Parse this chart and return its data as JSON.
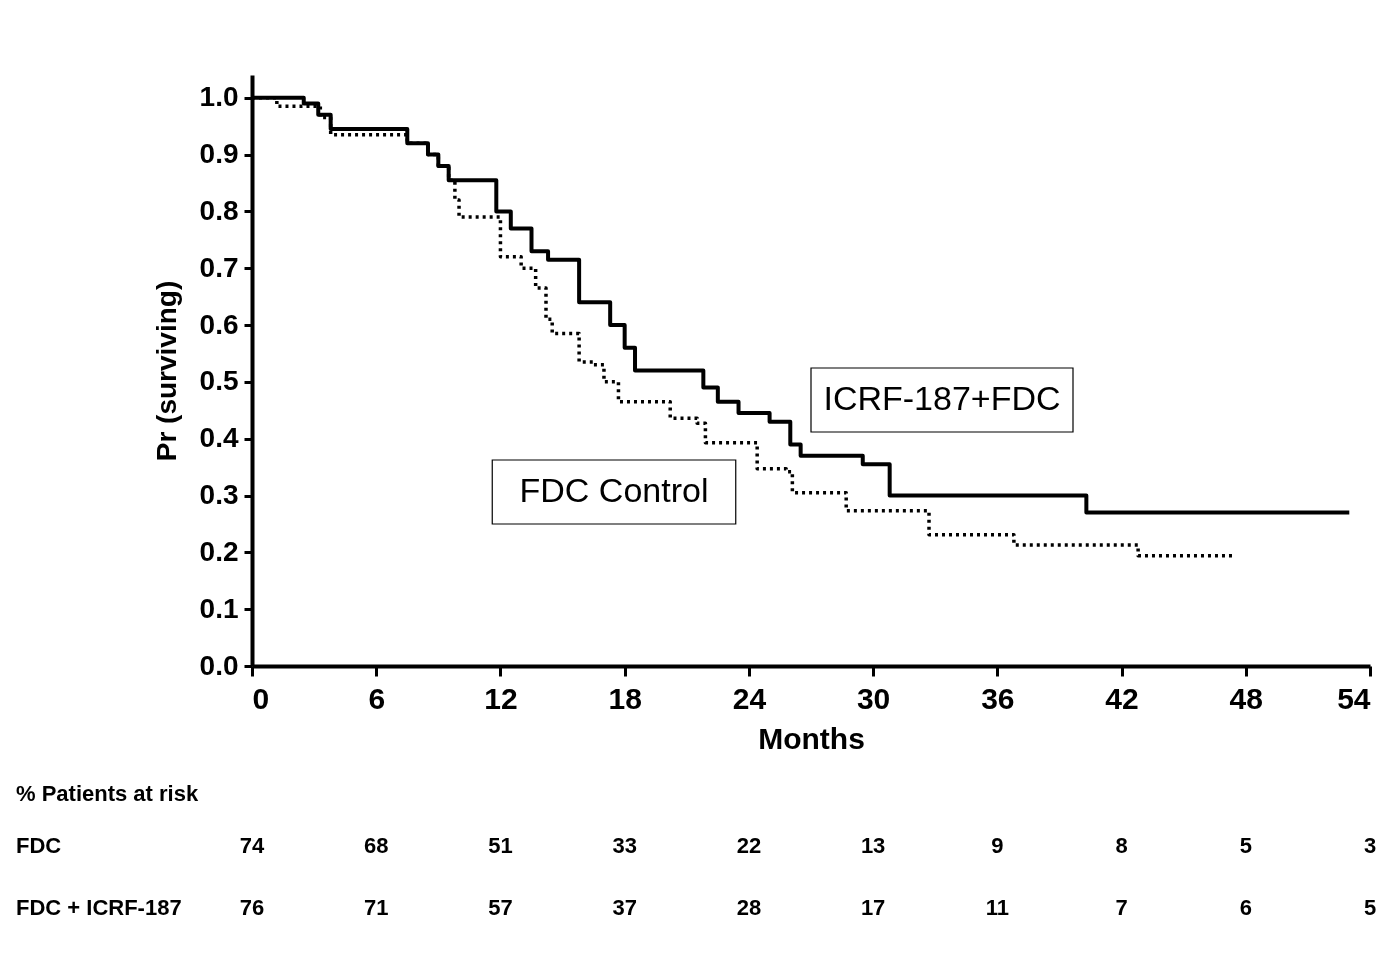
{
  "chart_data": {
    "type": "step",
    "xlabel": "Months",
    "ylabel": "Pr (surviving)",
    "xlim": [
      0,
      54
    ],
    "ylim": [
      0,
      1.04
    ],
    "xticks": [
      0,
      6,
      12,
      18,
      24,
      30,
      36,
      42,
      48,
      54
    ],
    "yticks": [
      {
        "value": 0,
        "label": "0.0"
      },
      {
        "value": 0.1,
        "label": "0.1"
      },
      {
        "value": 0.2,
        "label": "0.2"
      },
      {
        "value": 0.3,
        "label": "0.3"
      },
      {
        "value": 0.4,
        "label": "0.4"
      },
      {
        "value": 0.5,
        "label": "0.5"
      },
      {
        "value": 0.6,
        "label": "0.6"
      },
      {
        "value": 0.7,
        "label": "0.7"
      },
      {
        "value": 0.8,
        "label": "0.8"
      },
      {
        "value": 0.9,
        "label": "0.9"
      },
      {
        "value": 1,
        "label": "1.0"
      }
    ],
    "grid": false,
    "legend": false,
    "marker": "none",
    "series": [
      {
        "name": "ICRF-187+FDC",
        "color": "#000000",
        "line_style": "solid",
        "x": [
          0,
          2.5,
          3.2,
          3.8,
          6.8,
          7.5,
          8.5,
          9,
          9.5,
          11,
          11.8,
          12.5,
          13.5,
          14.3,
          15.8,
          17.3,
          18,
          18.5,
          21.2,
          21.8,
          22.5,
          23.5,
          25,
          26,
          26.5,
          29.5,
          30.8,
          40.3,
          53
        ],
        "values": [
          1,
          0.99,
          0.97,
          0.945,
          0.945,
          0.92,
          0.9,
          0.88,
          0.855,
          0.855,
          0.8,
          0.77,
          0.73,
          0.715,
          0.64,
          0.6,
          0.56,
          0.52,
          0.52,
          0.49,
          0.465,
          0.445,
          0.43,
          0.39,
          0.37,
          0.355,
          0.3,
          0.27,
          0.27
        ]
      },
      {
        "name": "FDC Control",
        "color": "#000000",
        "line_style": "dotted",
        "x": [
          0,
          1.2,
          3.3,
          3.8,
          7,
          7.5,
          8.5,
          9,
          9.5,
          9.8,
          10,
          12,
          13,
          13.7,
          14.2,
          14.5,
          15.8,
          16.5,
          17,
          17.7,
          20.2,
          21.5,
          21.9,
          24.4,
          25.8,
          26.1,
          28.7,
          32.7,
          36.8,
          42.8,
          47.4
        ],
        "values": [
          1,
          0.985,
          0.965,
          0.935,
          0.935,
          0.92,
          0.9,
          0.88,
          0.855,
          0.82,
          0.79,
          0.72,
          0.7,
          0.665,
          0.61,
          0.585,
          0.535,
          0.53,
          0.5,
          0.465,
          0.436,
          0.427,
          0.393,
          0.347,
          0.342,
          0.305,
          0.273,
          0.231,
          0.213,
          0.194,
          0.194
        ]
      }
    ],
    "annotations": [
      "% Patients at risk",
      "FDC",
      "74",
      "68",
      "51",
      "33",
      "22",
      "13",
      "9",
      "8",
      "5",
      "3",
      "FDC + ICRF-187",
      "76",
      "71",
      "57",
      "37",
      "28",
      "17",
      "11",
      "7",
      "6",
      "5"
    ]
  }
}
